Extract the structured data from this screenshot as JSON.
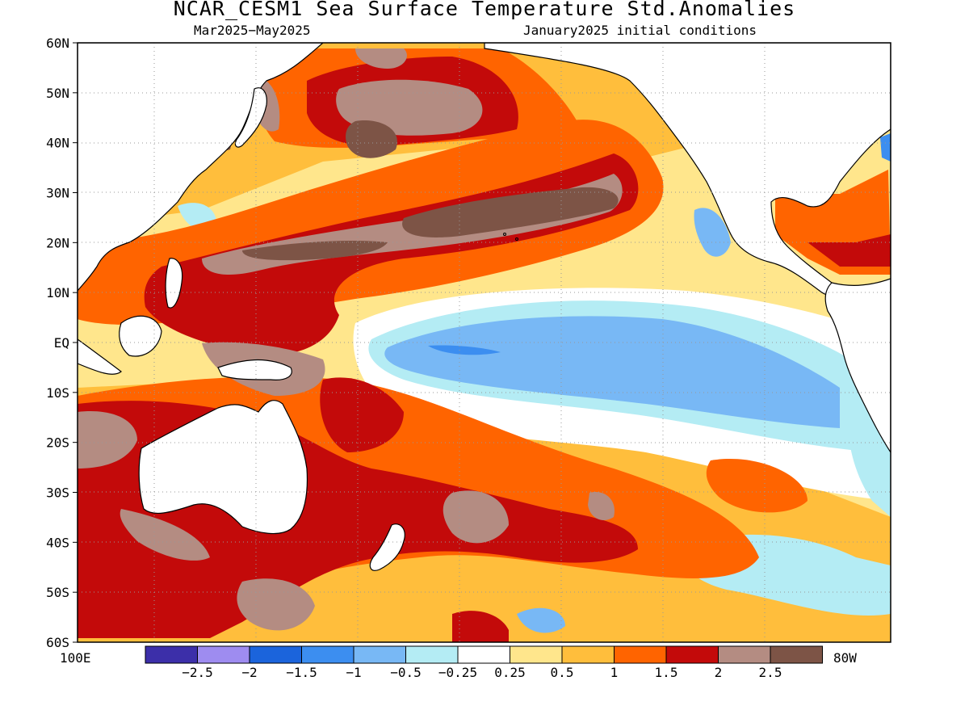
{
  "title": "NCAR_CESM1 Sea Surface Temperature Std.Anomalies",
  "period": "Mar2025−May2025",
  "init": "January2025 initial conditions",
  "lat_labels": [
    "60N",
    "50N",
    "40N",
    "30N",
    "20N",
    "10N",
    "EQ",
    "10S",
    "20S",
    "30S",
    "40S",
    "50S",
    "60S"
  ],
  "lon_left": "100E",
  "lon_right": "80W",
  "colorbar": {
    "colors": [
      "#3c2fa9",
      "#9e8cf0",
      "#1b64dc",
      "#3c8ef0",
      "#78b8f5",
      "#b4ecf4",
      "#ffffff",
      "#ffe68c",
      "#ffbe3c",
      "#ff6400",
      "#c30a0a",
      "#b48c82",
      "#7d5446"
    ],
    "labels": [
      "−2.5",
      "−2",
      "−1.5",
      "−1",
      "−0.5",
      "−0.25",
      "0.25",
      "0.5",
      "1",
      "1.5",
      "2",
      "2.5"
    ]
  }
}
